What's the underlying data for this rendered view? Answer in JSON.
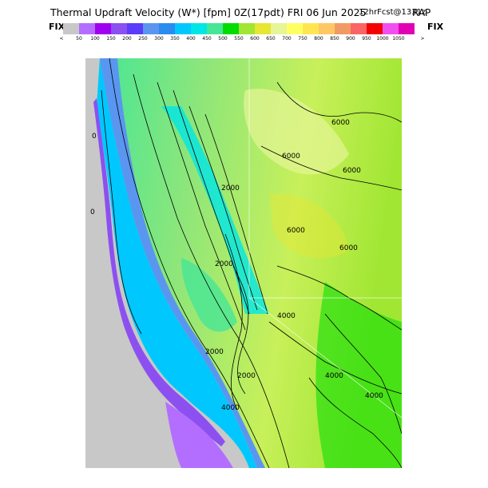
{
  "header": {
    "title": "Thermal Updraft Velocity (W*) [fpm] 0Z(17pdt) FRI 06 Jun 2025",
    "forecast": "12hrFcst@1331z",
    "model": "RAP"
  },
  "legend": {
    "fix_left": "FIX",
    "fix_right": "FIX",
    "less_than": "<",
    "greater_than": ">",
    "ticks": [
      "50",
      "100",
      "150",
      "200",
      "250",
      "300",
      "350",
      "400",
      "450",
      "500",
      "550",
      "600",
      "650",
      "700",
      "750",
      "800",
      "850",
      "900",
      "950",
      "1000",
      "1050"
    ],
    "colors": [
      "#c8c8c8",
      "#b46eff",
      "#a000f0",
      "#8c50f0",
      "#5a3cfa",
      "#5a96f0",
      "#2b8cf0",
      "#00c8ff",
      "#00e6e6",
      "#46e696",
      "#00dc00",
      "#a0e632",
      "#e6e633",
      "#e6f596",
      "#ffff64",
      "#ffe650",
      "#ffc864",
      "#f09b64",
      "#fa6464",
      "#f50000",
      "#f050f0",
      "#e100b4"
    ]
  },
  "map": {
    "contour_labels": [
      "6000",
      "6000",
      "6000",
      "6000",
      "6000",
      "2000",
      "2000",
      "2000",
      "2000",
      "4000",
      "4000",
      "4000",
      "4000",
      "0",
      "0"
    ]
  }
}
